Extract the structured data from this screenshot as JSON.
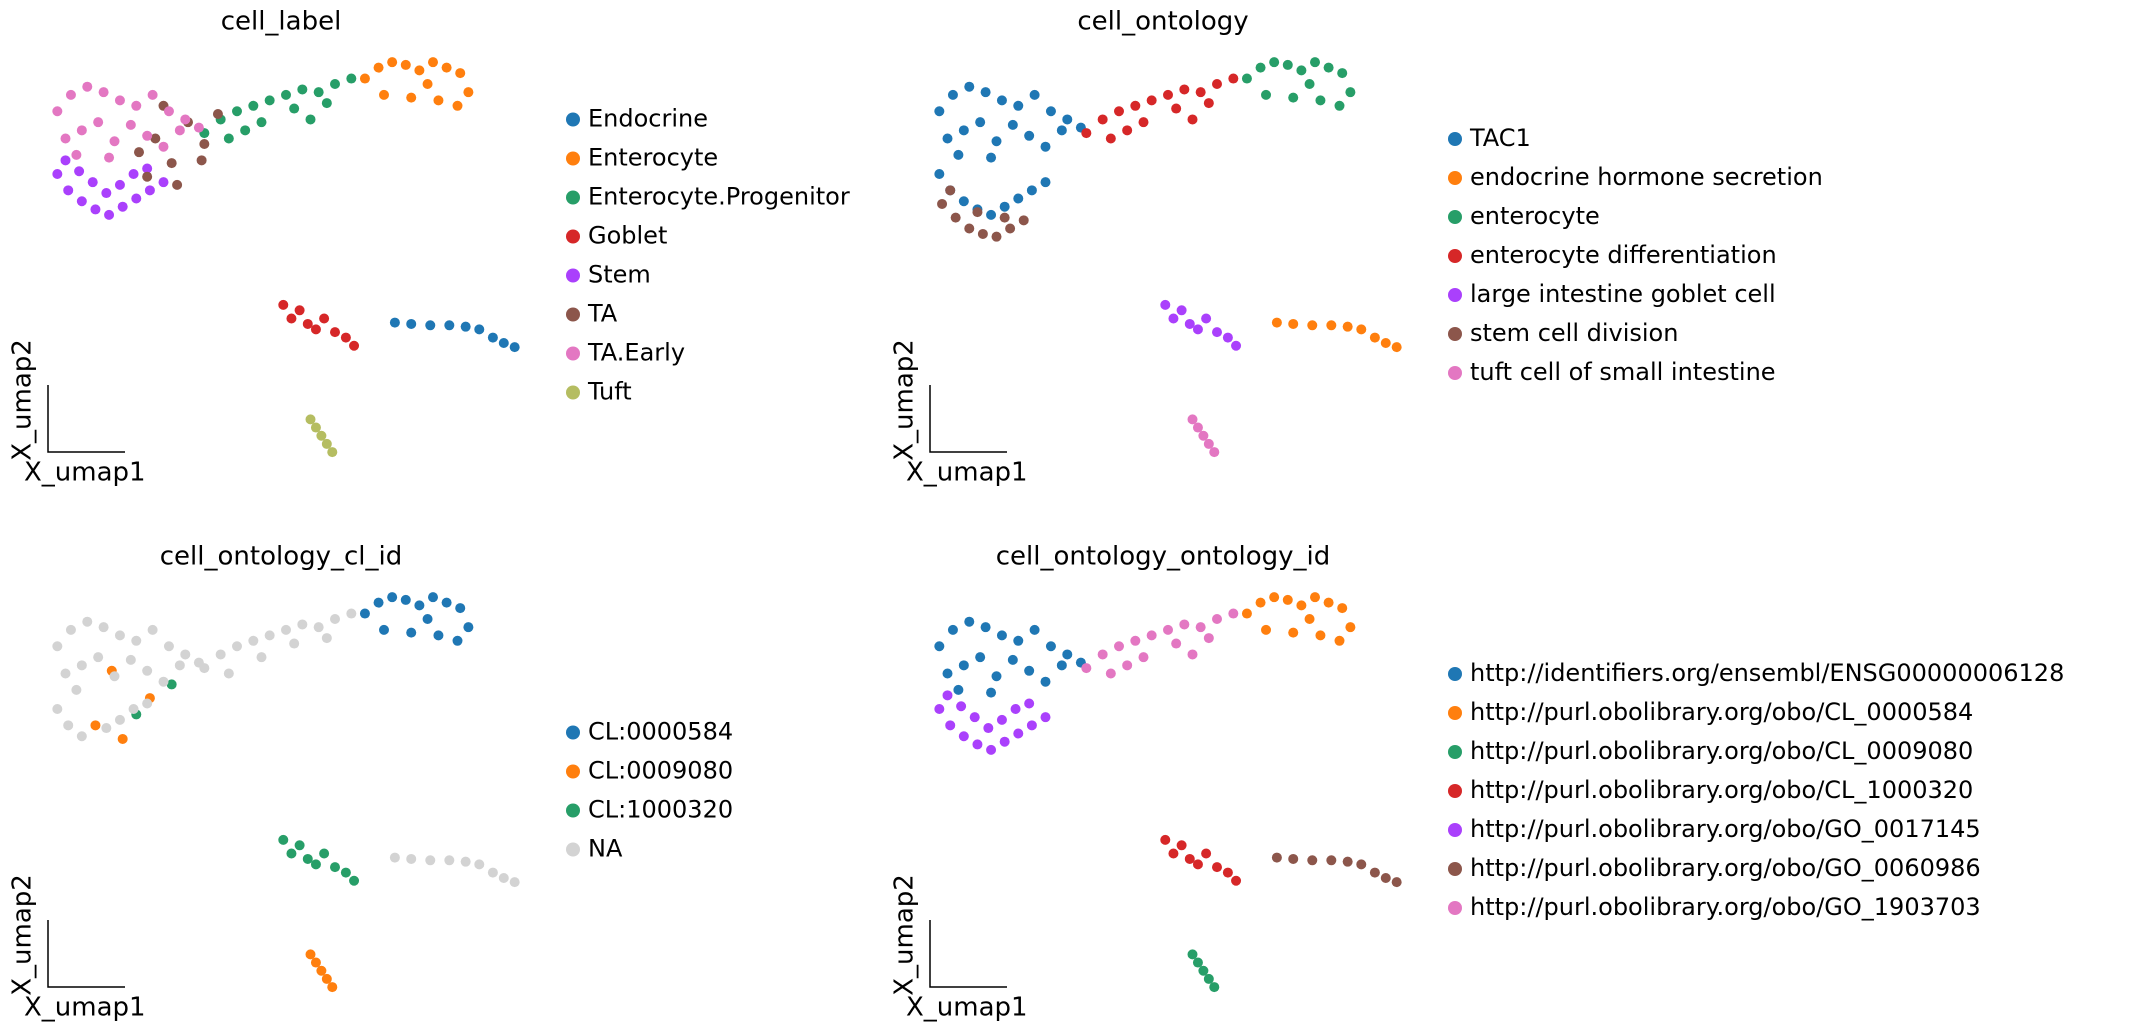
{
  "chart_data": [
    {
      "type": "scatter",
      "title": "cell_label",
      "xlabel": "X_umap1",
      "ylabel": "X_umap2",
      "xlim": [
        0,
        360
      ],
      "ylim": [
        0,
        300
      ],
      "series": [
        {
          "name": "Endocrine",
          "color": "#1f77b4",
          "x": [
            260,
            272,
            286,
            300,
            312,
            322,
            332,
            340,
            348
          ],
          "y": [
            103,
            102,
            101,
            101,
            100,
            98,
            92,
            88,
            85
          ]
        },
        {
          "name": "Enterocyte",
          "color": "#ff7f0e",
          "x": [
            238,
            248,
            258,
            268,
            278,
            288,
            298,
            308,
            314,
            252,
            272,
            292,
            306,
            284
          ],
          "y": [
            282,
            290,
            294,
            292,
            288,
            294,
            290,
            286,
            272,
            270,
            268,
            266,
            262,
            278
          ]
        },
        {
          "name": "Enterocyte.Progenitor",
          "color": "#279e68",
          "x": [
            120,
            132,
            144,
            156,
            168,
            180,
            192,
            204,
            216,
            228,
            138,
            162,
            186,
            210,
            150,
            198
          ],
          "y": [
            242,
            252,
            258,
            262,
            266,
            270,
            274,
            272,
            278,
            282,
            238,
            250,
            260,
            264,
            244,
            252
          ]
        },
        {
          "name": "Goblet",
          "color": "#d62728",
          "x": [
            178,
            184,
            190,
            196,
            202,
            208,
            216,
            224,
            230
          ],
          "y": [
            116,
            106,
            112,
            102,
            98,
            106,
            96,
            92,
            86
          ]
        },
        {
          "name": "Stem",
          "color": "#aa40fc",
          "x": [
            12,
            20,
            30,
            40,
            50,
            60,
            70,
            80,
            90,
            18,
            28,
            38,
            48,
            58,
            68,
            78
          ],
          "y": [
            212,
            200,
            192,
            186,
            182,
            188,
            194,
            200,
            206,
            222,
            214,
            206,
            198,
            204,
            212,
            216
          ]
        },
        {
          "name": "TA",
          "color": "#8c564b",
          "x": [
            72,
            84,
            96,
            108,
            120,
            130,
            78,
            100,
            118,
            90
          ],
          "y": [
            228,
            238,
            220,
            250,
            234,
            256,
            210,
            204,
            222,
            262
          ]
        },
        {
          "name": "TA.Early",
          "color": "#e377c2",
          "x": [
            12,
            22,
            34,
            46,
            58,
            70,
            82,
            94,
            106,
            116,
            18,
            30,
            42,
            54,
            66,
            78,
            90,
            102,
            26,
            50
          ],
          "y": [
            258,
            270,
            276,
            272,
            266,
            262,
            270,
            258,
            252,
            246,
            238,
            244,
            250,
            236,
            248,
            240,
            232,
            244,
            226,
            224
          ]
        },
        {
          "name": "Tuft",
          "color": "#b5bd61",
          "x": [
            198,
            202,
            206,
            210,
            214
          ],
          "y": [
            32,
            26,
            20,
            14,
            8
          ]
        }
      ]
    },
    {
      "type": "scatter",
      "title": "cell_ontology",
      "xlabel": "X_umap1",
      "ylabel": "X_umap2",
      "xlim": [
        0,
        360
      ],
      "ylim": [
        0,
        300
      ],
      "series": [
        {
          "name": "TAC1",
          "color": "#1f77b4",
          "x": [
            12,
            22,
            34,
            46,
            58,
            70,
            82,
            94,
            106,
            116,
            18,
            30,
            42,
            54,
            66,
            78,
            90,
            102,
            26,
            50,
            12,
            20,
            30,
            40,
            50,
            60,
            70,
            80,
            90
          ],
          "y": [
            258,
            270,
            276,
            272,
            266,
            262,
            270,
            258,
            252,
            246,
            238,
            244,
            250,
            236,
            248,
            240,
            232,
            244,
            226,
            224,
            212,
            200,
            192,
            186,
            182,
            188,
            194,
            200,
            206
          ]
        },
        {
          "name": "endocrine hormone secretion",
          "color": "#ff7f0e",
          "x": [
            260,
            272,
            286,
            300,
            312,
            322,
            332,
            340,
            348
          ],
          "y": [
            103,
            102,
            101,
            101,
            100,
            98,
            92,
            88,
            85
          ]
        },
        {
          "name": "enterocyte",
          "color": "#279e68",
          "x": [
            238,
            248,
            258,
            268,
            278,
            288,
            298,
            308,
            314,
            252,
            272,
            292,
            306,
            284
          ],
          "y": [
            282,
            290,
            294,
            292,
            288,
            294,
            290,
            286,
            272,
            270,
            268,
            266,
            262,
            278
          ]
        },
        {
          "name": "enterocyte differentiation",
          "color": "#d62728",
          "x": [
            120,
            132,
            144,
            156,
            168,
            180,
            192,
            204,
            216,
            228,
            138,
            162,
            186,
            210,
            150,
            198
          ],
          "y": [
            242,
            252,
            258,
            262,
            266,
            270,
            274,
            272,
            278,
            282,
            238,
            250,
            260,
            264,
            244,
            252
          ]
        },
        {
          "name": "large intestine goblet cell",
          "color": "#aa40fc",
          "x": [
            178,
            184,
            190,
            196,
            202,
            208,
            216,
            224,
            230
          ],
          "y": [
            116,
            106,
            112,
            102,
            98,
            106,
            96,
            92,
            86
          ]
        },
        {
          "name": "stem cell division",
          "color": "#8c564b",
          "x": [
            14,
            24,
            34,
            44,
            54,
            64,
            74,
            20,
            40,
            60
          ],
          "y": [
            190,
            180,
            172,
            168,
            166,
            172,
            178,
            200,
            184,
            180
          ]
        },
        {
          "name": "tuft cell of small intestine",
          "color": "#e377c2",
          "x": [
            198,
            202,
            206,
            210,
            214
          ],
          "y": [
            32,
            26,
            20,
            14,
            8
          ]
        }
      ]
    },
    {
      "type": "scatter",
      "title": "cell_ontology_cl_id",
      "xlabel": "X_umap1",
      "ylabel": "X_umap2",
      "xlim": [
        0,
        360
      ],
      "ylim": [
        0,
        300
      ],
      "series": [
        {
          "name": "CL:0000584",
          "color": "#1f77b4",
          "x": [
            238,
            248,
            258,
            268,
            278,
            288,
            298,
            308,
            314,
            252,
            272,
            292,
            306,
            284
          ],
          "y": [
            282,
            290,
            294,
            292,
            288,
            294,
            290,
            286,
            272,
            270,
            268,
            266,
            262,
            278
          ]
        },
        {
          "name": "CL:0009080",
          "color": "#ff7f0e",
          "x": [
            198,
            202,
            206,
            210,
            214,
            40,
            60,
            80,
            52
          ],
          "y": [
            32,
            26,
            20,
            14,
            8,
            200,
            190,
            220,
            240
          ]
        },
        {
          "name": "CL:1000320",
          "color": "#279e68",
          "x": [
            178,
            184,
            190,
            196,
            202,
            208,
            216,
            224,
            230,
            70,
            96
          ],
          "y": [
            116,
            106,
            112,
            102,
            98,
            106,
            96,
            92,
            86,
            208,
            230
          ]
        },
        {
          "name": "NA",
          "color": "#d3d3d3",
          "x": [
            12,
            22,
            34,
            46,
            58,
            70,
            82,
            94,
            106,
            116,
            18,
            30,
            42,
            54,
            66,
            78,
            90,
            102,
            26,
            12,
            20,
            30,
            48,
            58,
            68,
            78,
            120,
            132,
            144,
            156,
            168,
            180,
            192,
            204,
            216,
            228,
            138,
            162,
            186,
            210,
            260,
            272,
            286,
            300,
            312,
            322,
            332,
            340,
            348
          ],
          "y": [
            258,
            270,
            276,
            272,
            266,
            262,
            270,
            258,
            252,
            246,
            238,
            244,
            250,
            236,
            248,
            240,
            232,
            244,
            226,
            212,
            200,
            192,
            198,
            204,
            212,
            216,
            242,
            252,
            258,
            262,
            266,
            270,
            274,
            272,
            278,
            282,
            238,
            250,
            260,
            264,
            103,
            102,
            101,
            101,
            100,
            98,
            92,
            88,
            85
          ]
        }
      ]
    },
    {
      "type": "scatter",
      "title": "cell_ontology_ontology_id",
      "xlabel": "X_umap1",
      "ylabel": "X_umap2",
      "xlim": [
        0,
        360
      ],
      "ylim": [
        0,
        300
      ],
      "series": [
        {
          "name": "http://identifiers.org/ensembl/ENSG00000006128",
          "color": "#1f77b4",
          "x": [
            12,
            22,
            34,
            46,
            58,
            70,
            82,
            94,
            106,
            116,
            18,
            30,
            42,
            54,
            66,
            78,
            90,
            102,
            26,
            50
          ],
          "y": [
            258,
            270,
            276,
            272,
            266,
            262,
            270,
            258,
            252,
            246,
            238,
            244,
            250,
            236,
            248,
            240,
            232,
            244,
            226,
            224
          ]
        },
        {
          "name": "http://purl.obolibrary.org/obo/CL_0000584",
          "color": "#ff7f0e",
          "x": [
            238,
            248,
            258,
            268,
            278,
            288,
            298,
            308,
            314,
            252,
            272,
            292,
            306,
            284
          ],
          "y": [
            282,
            290,
            294,
            292,
            288,
            294,
            290,
            286,
            272,
            270,
            268,
            266,
            262,
            278
          ]
        },
        {
          "name": "http://purl.obolibrary.org/obo/CL_0009080",
          "color": "#279e68",
          "x": [
            198,
            202,
            206,
            210,
            214
          ],
          "y": [
            32,
            26,
            20,
            14,
            8
          ]
        },
        {
          "name": "http://purl.obolibrary.org/obo/CL_1000320",
          "color": "#d62728",
          "x": [
            178,
            184,
            190,
            196,
            202,
            208,
            216,
            224,
            230
          ],
          "y": [
            116,
            106,
            112,
            102,
            98,
            106,
            96,
            92,
            86
          ]
        },
        {
          "name": "http://purl.obolibrary.org/obo/GO_0017145",
          "color": "#aa40fc",
          "x": [
            12,
            20,
            30,
            40,
            50,
            60,
            70,
            80,
            90,
            18,
            28,
            38,
            48,
            58,
            68,
            78
          ],
          "y": [
            212,
            200,
            192,
            186,
            182,
            188,
            194,
            200,
            206,
            222,
            214,
            206,
            198,
            204,
            212,
            216
          ]
        },
        {
          "name": "http://purl.obolibrary.org/obo/GO_0060986",
          "color": "#8c564b",
          "x": [
            260,
            272,
            286,
            300,
            312,
            322,
            332,
            340,
            348
          ],
          "y": [
            103,
            102,
            101,
            101,
            100,
            98,
            92,
            88,
            85
          ]
        },
        {
          "name": "http://purl.obolibrary.org/obo/GO_1903703",
          "color": "#e377c2",
          "x": [
            120,
            132,
            144,
            156,
            168,
            180,
            192,
            204,
            216,
            228,
            138,
            162,
            186,
            210,
            150,
            198
          ],
          "y": [
            242,
            252,
            258,
            262,
            266,
            270,
            274,
            272,
            278,
            282,
            238,
            250,
            260,
            264,
            244,
            252
          ]
        }
      ]
    }
  ]
}
